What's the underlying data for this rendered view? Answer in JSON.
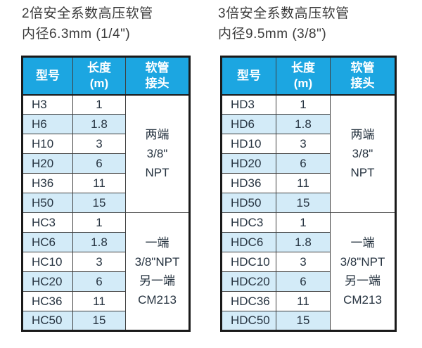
{
  "colors": {
    "header_bg": "#1CA6E1",
    "header_text": "#ffffff",
    "stripe": "#D3EBF8",
    "border_outer": "#1a1a1a",
    "border_inner": "#3f3f3f",
    "body_text": "#263340",
    "title_text": "#3b3b3b",
    "page_bg": "#ffffff"
  },
  "left": {
    "title_line1": "2倍安全系数高压软管",
    "title_line2": "内径6.3mm (1/4\")",
    "table": {
      "headers": [
        "型号",
        "长度\n(m)",
        "软管\n接头"
      ],
      "rows": [
        [
          "H3",
          "1"
        ],
        [
          "H6",
          "1.8"
        ],
        [
          "H10",
          "3"
        ],
        [
          "H20",
          "6"
        ],
        [
          "H36",
          "11"
        ],
        [
          "H50",
          "15"
        ],
        [
          "HC3",
          "1"
        ],
        [
          "HC6",
          "1.8"
        ],
        [
          "HC10",
          "3"
        ],
        [
          "HC20",
          "6"
        ],
        [
          "HC36",
          "11"
        ],
        [
          "HC50",
          "15"
        ]
      ],
      "connector_groups": [
        {
          "span": 6,
          "text": "两端\n3/8\"\nNPT"
        },
        {
          "span": 6,
          "text": "一端\n3/8\"NPT\n另一端\nCM213"
        }
      ]
    }
  },
  "right": {
    "title_line1": "3倍安全系数高压软管",
    "title_line2": "内径9.5mm (3/8\")",
    "table": {
      "headers": [
        "型号",
        "长度\n(m)",
        "软管\n接头"
      ],
      "rows": [
        [
          "HD3",
          "1"
        ],
        [
          "HD6",
          "1.8"
        ],
        [
          "HD10",
          "3"
        ],
        [
          "HD20",
          "6"
        ],
        [
          "HD36",
          "11"
        ],
        [
          "HD50",
          "15"
        ],
        [
          "HDC3",
          "1"
        ],
        [
          "HDC6",
          "1.8"
        ],
        [
          "HDC10",
          "3"
        ],
        [
          "HDC20",
          "6"
        ],
        [
          "HDC36",
          "11"
        ],
        [
          "HDC50",
          "15"
        ]
      ],
      "connector_groups": [
        {
          "span": 6,
          "text": "两端\n3/8\"\nNPT"
        },
        {
          "span": 6,
          "text": "一端\n3/8\"NPT\n另一端\nCM213"
        }
      ]
    }
  }
}
